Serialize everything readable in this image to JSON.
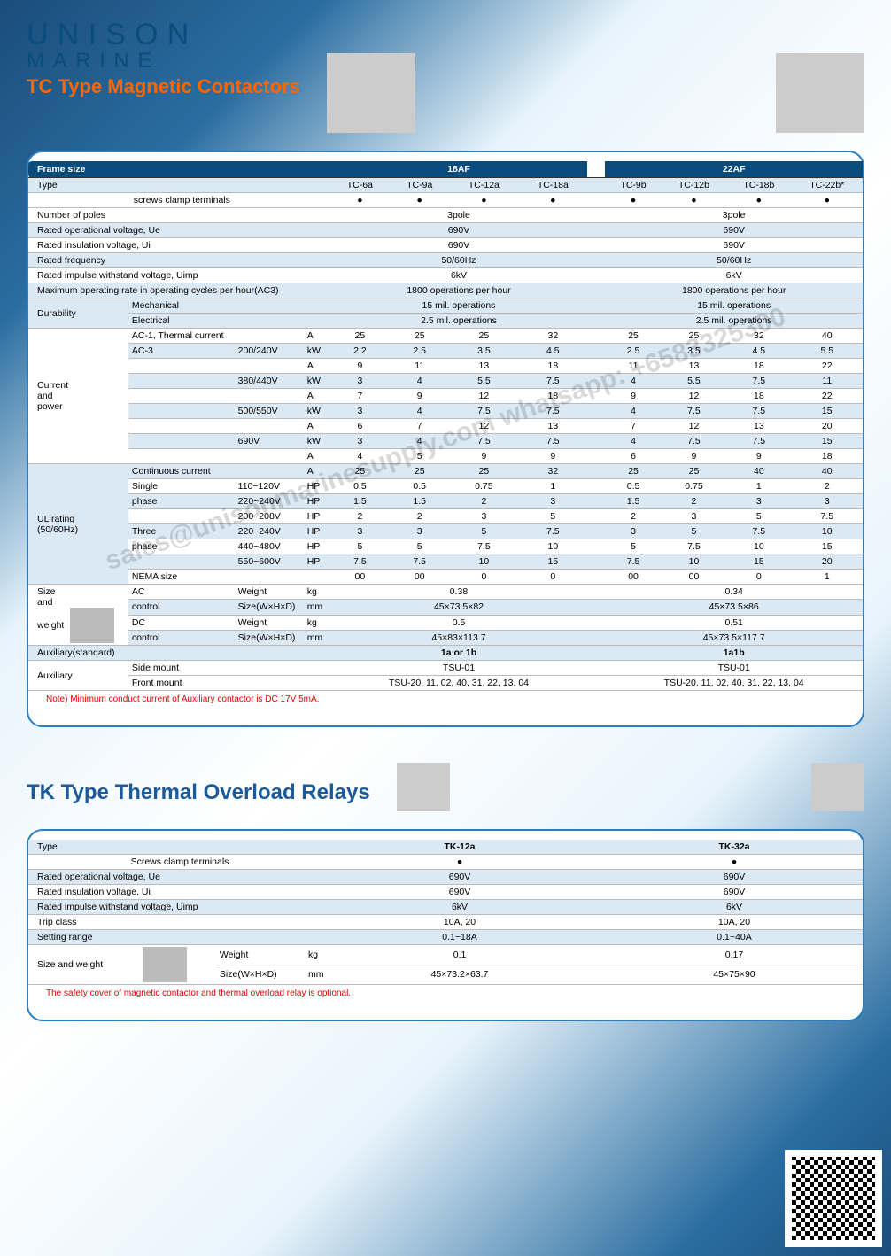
{
  "brand": {
    "line1": "UNISON",
    "line2": "MARINE"
  },
  "section1": {
    "title": "TC Type Magnetic Contactors",
    "frame_sizes": [
      "18AF",
      "22AF"
    ],
    "type_label": "Type",
    "types1": [
      "TC-6a",
      "TC-9a",
      "TC-12a",
      "TC-18a"
    ],
    "types2": [
      "TC-9b",
      "TC-12b",
      "TC-18b",
      "TC-22b*"
    ],
    "screws": "screws clamp terminals",
    "rows": [
      {
        "label": "Number of poles",
        "c1": "3pole",
        "c2": "3pole"
      },
      {
        "label": "Rated operational voltage, Ue",
        "c1": "690V",
        "c2": "690V"
      },
      {
        "label": "Rated insulation voltage, Ui",
        "c1": "690V",
        "c2": "690V"
      },
      {
        "label": "Rated frequency",
        "c1": "50/60Hz",
        "c2": "50/60Hz"
      },
      {
        "label": "Rated impulse withstand voltage, Uimp",
        "c1": "6kV",
        "c2": "6kV"
      },
      {
        "label": "Maximum operating rate in operating cycles per hour(AC3)",
        "c1": "1800 operations per hour",
        "c2": "1800 operations per hour"
      }
    ],
    "durability": {
      "label": "Durability",
      "mech_l": "Mechanical",
      "mech_v1": "15 mil. operations",
      "mech_v2": "15 mil. operations",
      "elec_l": "Electrical",
      "elec_v1": "2.5 mil. operations",
      "elec_v2": "2.5 mil. operations"
    },
    "cp": {
      "label": "Current\nand\npower",
      "r": [
        {
          "s1": "AC-1, Thermal current",
          "s2": "",
          "u": "A",
          "v": [
            "25",
            "25",
            "25",
            "32",
            "25",
            "25",
            "32",
            "40"
          ]
        },
        {
          "s1": "AC-3",
          "s2": "200/240V",
          "u": "kW",
          "v": [
            "2.2",
            "2.5",
            "3.5",
            "4.5",
            "2.5",
            "3.5",
            "4.5",
            "5.5"
          ]
        },
        {
          "s1": "",
          "s2": "",
          "u": "A",
          "v": [
            "9",
            "11",
            "13",
            "18",
            "11",
            "13",
            "18",
            "22"
          ]
        },
        {
          "s1": "",
          "s2": "380/440V",
          "u": "kW",
          "v": [
            "3",
            "4",
            "5.5",
            "7.5",
            "4",
            "5.5",
            "7.5",
            "11"
          ]
        },
        {
          "s1": "",
          "s2": "",
          "u": "A",
          "v": [
            "7",
            "9",
            "12",
            "18",
            "9",
            "12",
            "18",
            "22"
          ]
        },
        {
          "s1": "",
          "s2": "500/550V",
          "u": "kW",
          "v": [
            "3",
            "4",
            "7.5",
            "7.5",
            "4",
            "7.5",
            "7.5",
            "15"
          ]
        },
        {
          "s1": "",
          "s2": "",
          "u": "A",
          "v": [
            "6",
            "7",
            "12",
            "13",
            "7",
            "12",
            "13",
            "20"
          ]
        },
        {
          "s1": "",
          "s2": "690V",
          "u": "kW",
          "v": [
            "3",
            "4",
            "7.5",
            "7.5",
            "4",
            "7.5",
            "7.5",
            "15"
          ]
        },
        {
          "s1": "",
          "s2": "",
          "u": "A",
          "v": [
            "4",
            "5",
            "9",
            "9",
            "6",
            "9",
            "9",
            "18"
          ]
        }
      ]
    },
    "ul": {
      "label": "UL rating\n(50/60Hz)",
      "r": [
        {
          "s1": "Continuous current",
          "s2": "",
          "u": "A",
          "v": [
            "25",
            "25",
            "25",
            "32",
            "25",
            "25",
            "40",
            "40"
          ]
        },
        {
          "s1": "Single",
          "s2": "110~120V",
          "u": "HP",
          "v": [
            "0.5",
            "0.5",
            "0.75",
            "1",
            "0.5",
            "0.75",
            "1",
            "2"
          ]
        },
        {
          "s1": "phase",
          "s2": "220~240V",
          "u": "HP",
          "v": [
            "1.5",
            "1.5",
            "2",
            "3",
            "1.5",
            "2",
            "3",
            "3"
          ]
        },
        {
          "s1": "",
          "s2": "200~208V",
          "u": "HP",
          "v": [
            "2",
            "2",
            "3",
            "5",
            "2",
            "3",
            "5",
            "7.5"
          ]
        },
        {
          "s1": "Three",
          "s2": "220~240V",
          "u": "HP",
          "v": [
            "3",
            "3",
            "5",
            "7.5",
            "3",
            "5",
            "7.5",
            "10"
          ]
        },
        {
          "s1": "phase",
          "s2": "440~480V",
          "u": "HP",
          "v": [
            "5",
            "5",
            "7.5",
            "10",
            "5",
            "7.5",
            "10",
            "15"
          ]
        },
        {
          "s1": "",
          "s2": "550~600V",
          "u": "HP",
          "v": [
            "7.5",
            "7.5",
            "10",
            "15",
            "7.5",
            "10",
            "15",
            "20"
          ]
        },
        {
          "s1": "NEMA  size",
          "s2": "",
          "u": "",
          "v": [
            "00",
            "00",
            "0",
            "0",
            "00",
            "00",
            "0",
            "1"
          ]
        }
      ]
    },
    "size": {
      "label": "Size\nand\nweight",
      "r": [
        {
          "s1": "AC",
          "s2": "Weight",
          "u": "kg",
          "c1": "0.38",
          "c2": "0.34"
        },
        {
          "s1": "control",
          "s2": "Size(W×H×D)",
          "u": "mm",
          "c1": "45×73.5×82",
          "c2": "45×73.5×86"
        },
        {
          "s1": "DC",
          "s2": "Weight",
          "u": "kg",
          "c1": "0.5",
          "c2": "0.51"
        },
        {
          "s1": "control",
          "s2": "Size(W×H×D)",
          "u": "mm",
          "c1": "45×83×113.7",
          "c2": "45×73.5×117.7"
        }
      ]
    },
    "aux_std": {
      "label": "Auxiliary(standard)",
      "c1": "1a or 1b",
      "c2": "1a1b"
    },
    "aux": {
      "label": "Auxiliary",
      "side_l": "Side mount",
      "side_v": "TSU-01",
      "front_l": "Front mount",
      "front_v1": "TSU-20, 11, 02, 40, 31, 22, 13, 04",
      "front_v2": "TSU-20, 11, 02, 40, 31, 22, 13, 04"
    },
    "note": "Note) Minimum conduct current of Auxiliary contactor is DC 17V 5mA.",
    "frame_size_label": "Frame size"
  },
  "section2": {
    "title": "TK Type Thermal Overload Relays",
    "type_label": "Type",
    "types": [
      "TK-12a",
      "TK-32a"
    ],
    "screws": "Screws clamp terminals",
    "rows": [
      {
        "label": "Rated operational voltage, Ue",
        "v": [
          "690V",
          "690V"
        ]
      },
      {
        "label": "Rated insulation voltage, Ui",
        "v": [
          "690V",
          "690V"
        ]
      },
      {
        "label": "Rated impulse withstand voltage, Uimp",
        "v": [
          "6kV",
          "6kV"
        ]
      },
      {
        "label": "Trip class",
        "v": [
          "10A, 20",
          "10A, 20"
        ]
      },
      {
        "label": "Setting range",
        "v": [
          "0.1~18A",
          "0.1~40A"
        ]
      }
    ],
    "size": {
      "label": "Size\nand\nweight",
      "weight_l": "Weight",
      "weight_u": "kg",
      "weight_v": [
        "0.1",
        "0.17"
      ],
      "dim_l": "Size(W×H×D)",
      "dim_u": "mm",
      "dim_v": [
        "45×73.2×63.7",
        "45×75×90"
      ]
    },
    "note": "The safety cover of magnetic contactor and thermal overload relay is optional."
  },
  "watermark": "sales@unisonmarinesupply.com\nwhatsapp: +6583325300",
  "colors": {
    "brand": "#0a4d7d",
    "accent": "#ff6600",
    "panel_border": "#2a7dc0",
    "row_alt": "#dbe9f5"
  }
}
